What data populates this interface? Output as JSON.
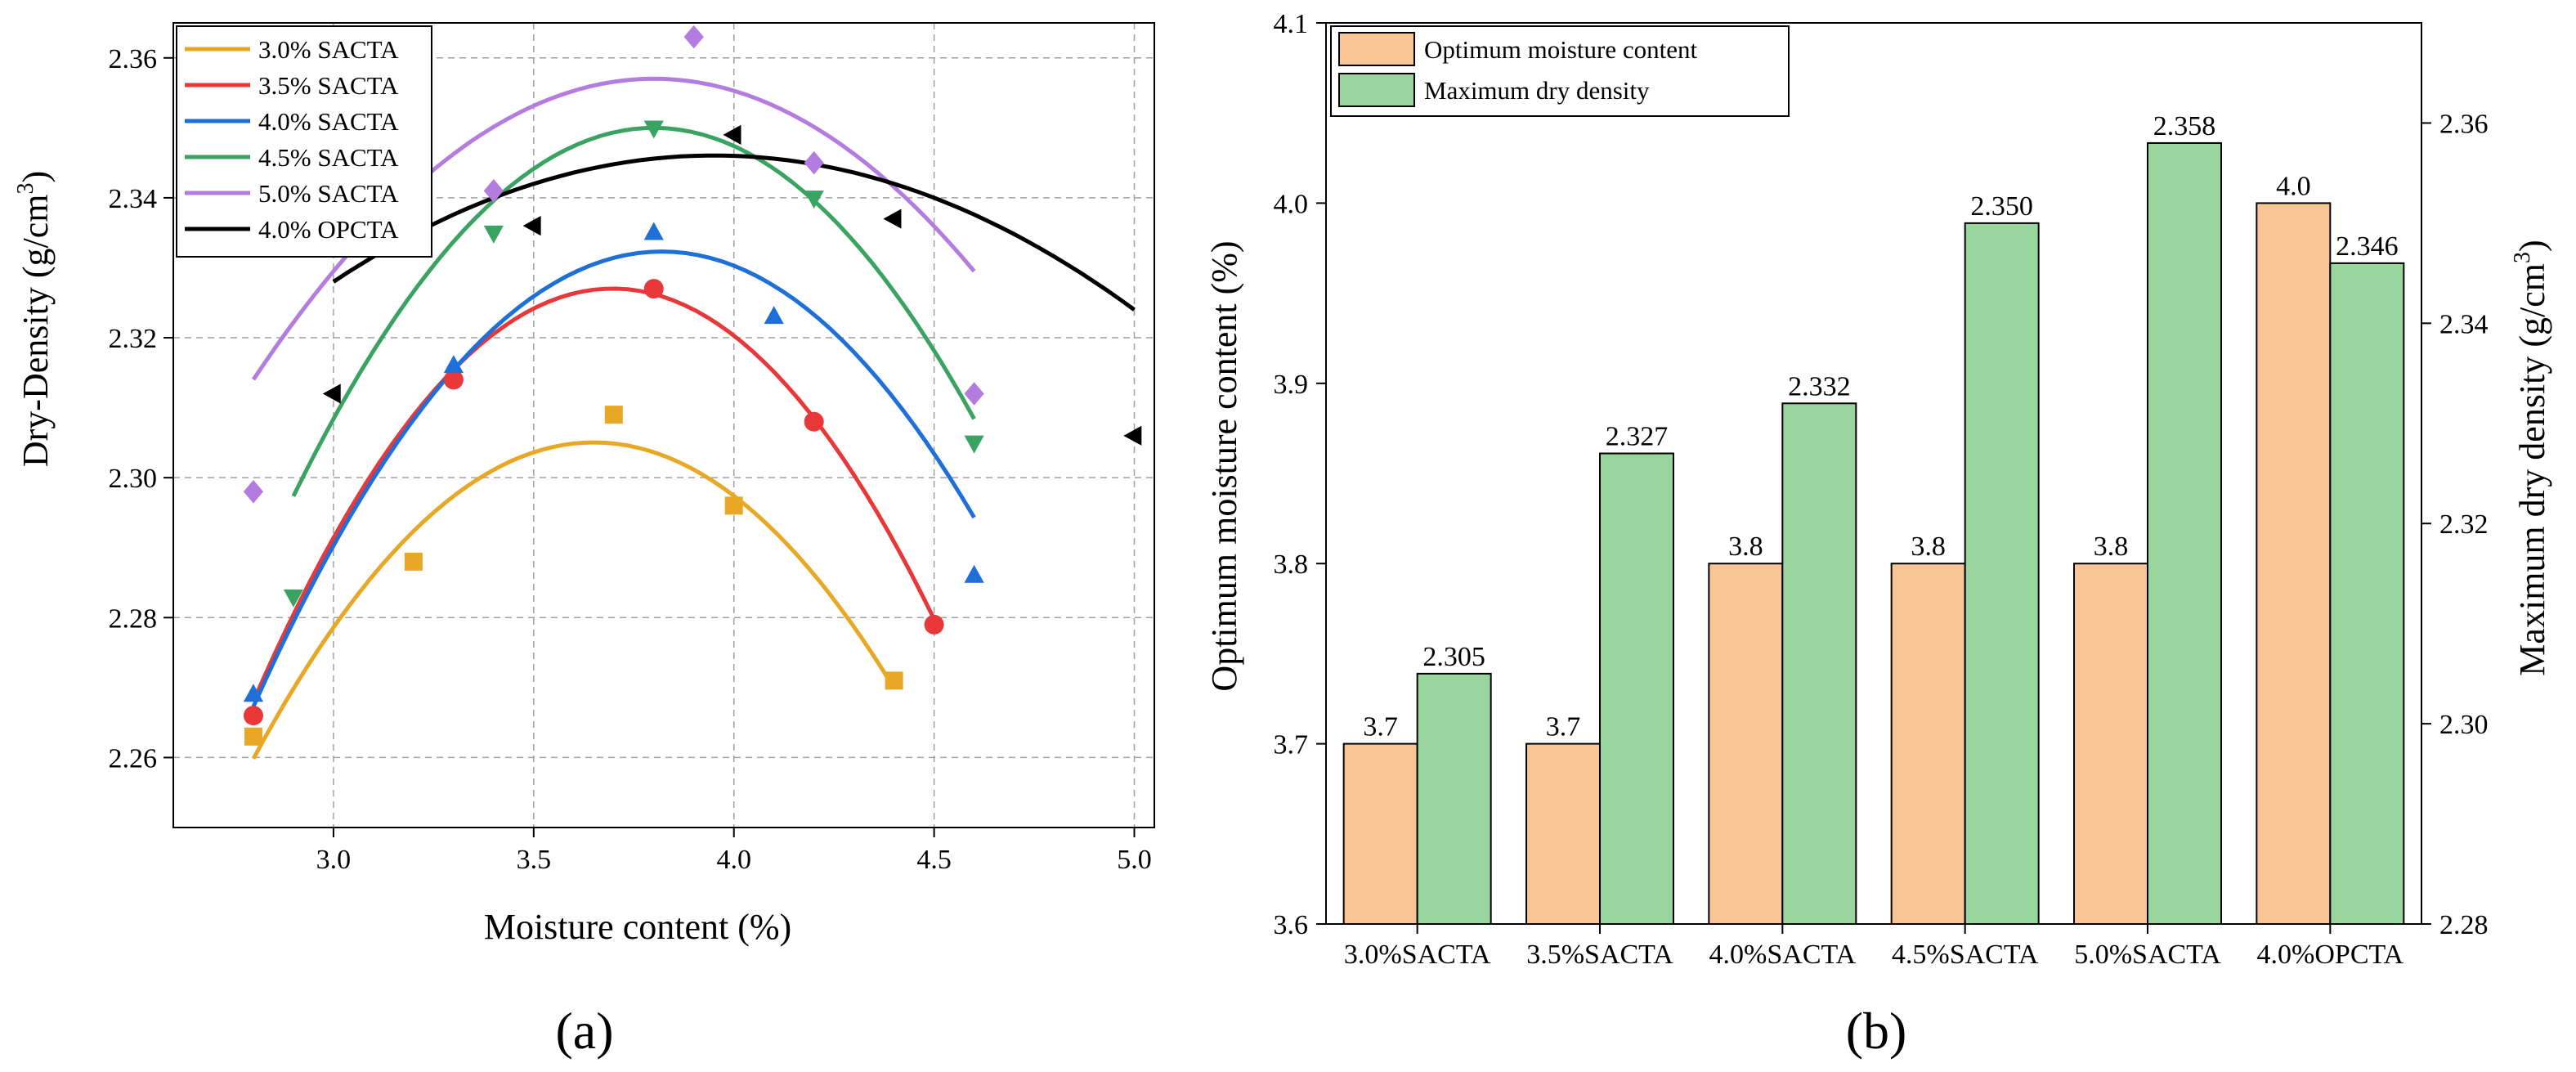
{
  "chart_data": [
    {
      "type": "scatter",
      "panel_label": "(a)",
      "xlabel": "Moisture content (%)",
      "ylabel_main": "Dry-Density (g/cm",
      "ylabel_sup": "3",
      "ylabel_close": ")",
      "xlim": [
        2.6,
        5.05
      ],
      "ylim": [
        2.25,
        2.365
      ],
      "xticks": [
        "3.0",
        "3.5",
        "4.0",
        "4.5",
        "5.0"
      ],
      "xtick_values": [
        3.0,
        3.5,
        4.0,
        4.5,
        5.0
      ],
      "yticks": [
        "2.26",
        "2.28",
        "2.30",
        "2.32",
        "2.34",
        "2.36"
      ],
      "ytick_values": [
        2.26,
        2.28,
        2.3,
        2.32,
        2.34,
        2.36
      ],
      "grid": true,
      "legend_position": "top-left",
      "fit": "quadratic",
      "series": [
        {
          "name": "3.0% SACTA",
          "color": "#E8A825",
          "marker": "square",
          "x": [
            2.8,
            3.2,
            3.7,
            4.0,
            4.4
          ],
          "y": [
            2.263,
            2.288,
            2.309,
            2.296,
            2.271
          ],
          "fit_x": [
            2.8,
            4.4
          ],
          "fit_coef": [
            -0.0625,
            0.4563,
            1.4722
          ]
        },
        {
          "name": "3.5% SACTA",
          "color": "#E8383A",
          "marker": "circle",
          "x": [
            2.8,
            3.3,
            3.8,
            4.2,
            4.5
          ],
          "y": [
            2.266,
            2.314,
            2.327,
            2.308,
            2.279
          ],
          "fit_x": [
            2.8,
            4.5
          ],
          "fit_coef": [
            -0.0733,
            0.542,
            1.3251
          ]
        },
        {
          "name": "4.0% SACTA",
          "color": "#1E6FD8",
          "marker": "triangle-up",
          "x": [
            2.8,
            3.3,
            3.8,
            4.1,
            4.6
          ],
          "y": [
            2.269,
            2.316,
            2.335,
            2.323,
            2.286
          ],
          "fit_x": [
            2.8,
            4.6
          ],
          "fit_coef": [
            -0.0625,
            0.4775,
            1.4203
          ]
        },
        {
          "name": "4.5% SACTA",
          "color": "#3AA361",
          "marker": "triangle-down",
          "x": [
            2.9,
            3.4,
            3.8,
            4.2,
            4.6
          ],
          "y": [
            2.283,
            2.335,
            2.35,
            2.34,
            2.305
          ],
          "fit_x": [
            2.9,
            4.6
          ],
          "fit_coef": [
            -0.065,
            0.494,
            1.4114
          ]
        },
        {
          "name": "5.0% SACTA",
          "color": "#B57CE0",
          "marker": "diamond",
          "x": [
            2.8,
            3.4,
            3.9,
            4.2,
            4.6
          ],
          "y": [
            2.298,
            2.341,
            2.363,
            2.345,
            2.312
          ],
          "fit_x": [
            2.8,
            4.6
          ],
          "fit_coef": [
            -0.043,
            0.3268,
            1.7361
          ]
        },
        {
          "name": "4.0% OPCTA",
          "color": "#000000",
          "marker": "triangle-left",
          "x": [
            3.0,
            3.5,
            4.0,
            4.4,
            5.0
          ],
          "y": [
            2.312,
            2.336,
            2.349,
            2.337,
            2.306
          ],
          "fit_x": [
            3.0,
            5.0
          ],
          "fit_coef": [
            -0.02,
            0.158,
            2.034
          ]
        }
      ]
    },
    {
      "type": "bar",
      "panel_label": "(b)",
      "categories": [
        "3.0%SACTA",
        "3.5%SACTA",
        "4.0%SACTA",
        "4.5%SACTA",
        "5.0%SACTA",
        "4.0%OPCTA"
      ],
      "ylabel_left": "Optimum moisture content (%)",
      "ylabel_right_main": "Maximum dry density (g/cm",
      "ylabel_right_sup": "3",
      "ylabel_right_close": ")",
      "ylim_left": [
        3.6,
        4.1
      ],
      "ylim_right": [
        2.28,
        2.37
      ],
      "yticks_left": [
        "3.6",
        "3.7",
        "3.8",
        "3.9",
        "4.0",
        "4.1"
      ],
      "ytick_values_left": [
        3.6,
        3.7,
        3.8,
        3.9,
        4.0,
        4.1
      ],
      "yticks_right": [
        "2.28",
        "2.30",
        "2.32",
        "2.34",
        "2.36"
      ],
      "ytick_values_right": [
        2.28,
        2.3,
        2.32,
        2.34,
        2.36
      ],
      "legend_position": "top-left",
      "series": [
        {
          "name": "Optimum moisture content",
          "axis": "left",
          "color": "#F9C595",
          "values": [
            3.7,
            3.7,
            3.8,
            3.8,
            3.8,
            4.0
          ],
          "labels": [
            "3.7",
            "3.7",
            "3.8",
            "3.8",
            "3.8",
            "4.0"
          ]
        },
        {
          "name": "Maximum dry density",
          "axis": "right",
          "color": "#99D69E",
          "values": [
            2.305,
            2.327,
            2.332,
            2.35,
            2.358,
            2.346
          ],
          "labels": [
            "2.305",
            "2.327",
            "2.332",
            "2.350",
            "2.358",
            "2.346"
          ]
        }
      ]
    }
  ]
}
